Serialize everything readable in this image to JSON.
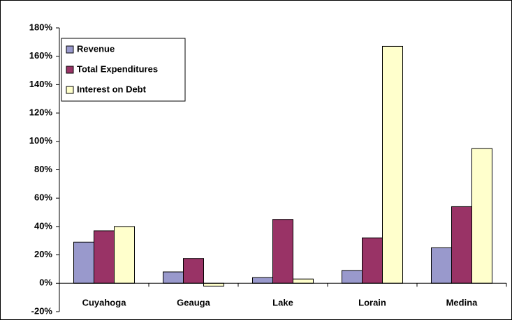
{
  "chart_data": {
    "type": "bar",
    "categories": [
      "Cuyahoga",
      "Geauga",
      "Lake",
      "Lorain",
      "Medina"
    ],
    "series": [
      {
        "name": "Revenue",
        "color": "#9999cc",
        "values": [
          29,
          8,
          4,
          9,
          25
        ]
      },
      {
        "name": "Total Expenditures",
        "color": "#993366",
        "values": [
          37,
          17.5,
          45,
          32,
          54
        ]
      },
      {
        "name": "Interest on Debt",
        "color": "#ffffcc",
        "values": [
          40,
          -2,
          3,
          167,
          95
        ]
      }
    ],
    "ylim": [
      -20,
      180
    ],
    "yticks": [
      {
        "value": -20,
        "label": "-20%"
      },
      {
        "value": 0,
        "label": "0%"
      },
      {
        "value": 20,
        "label": "20%"
      },
      {
        "value": 40,
        "label": "40%"
      },
      {
        "value": 60,
        "label": "60%"
      },
      {
        "value": 80,
        "label": "80%"
      },
      {
        "value": 100,
        "label": "100%"
      },
      {
        "value": 120,
        "label": "120%"
      },
      {
        "value": 140,
        "label": "140%"
      },
      {
        "value": 160,
        "label": "160%"
      },
      {
        "value": 180,
        "label": "180%"
      }
    ],
    "grid": false,
    "legend": "upper left"
  }
}
